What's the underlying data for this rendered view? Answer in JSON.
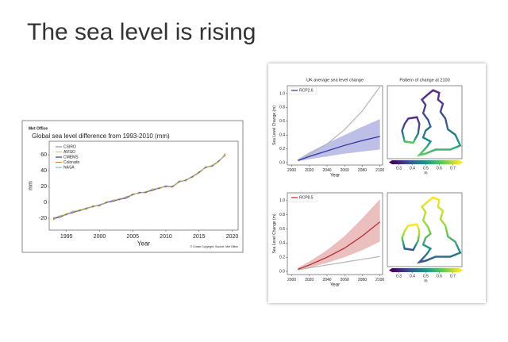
{
  "title": "The sea level is rising",
  "chart_data": [
    {
      "type": "line",
      "logo": "Met Office",
      "title": "Global sea level difference from 1993-2010 (mm)",
      "xlabel": "Year",
      "ylabel": "mm",
      "note": "© Crown Copyright. Source: Met Office",
      "xlim": [
        1992.4,
        2020.9
      ],
      "ylim": [
        -35,
        77
      ],
      "xticks": [
        1995,
        2000,
        2005,
        2010,
        2015,
        2020
      ],
      "yticks": [
        -20,
        0,
        20,
        40,
        60
      ],
      "legend": "upper left",
      "x": [
        1993,
        1994,
        1995,
        1996,
        1997,
        1998,
        1999,
        2000,
        2001,
        2002,
        2003,
        2004,
        2005,
        2006,
        2007,
        2008,
        2009,
        2010,
        2011,
        2012,
        2013,
        2014,
        2015,
        2016,
        2017,
        2018,
        2019
      ],
      "series": [
        {
          "name": "CSIRO",
          "color": "#9c8fb8",
          "values": [
            -21,
            -17,
            -16,
            -11,
            -11,
            -7,
            -6,
            -3,
            -1,
            3,
            3,
            7,
            9,
            13,
            12,
            17,
            17,
            21,
            19,
            27,
            27,
            33,
            37,
            45,
            45,
            53,
            59
          ]
        },
        {
          "name": "AVISO",
          "color": "#e2cf4a",
          "values": [
            -19,
            -18,
            -14,
            -12,
            -9,
            -9,
            -4,
            -5,
            1,
            2,
            5,
            6,
            11,
            11,
            14,
            16,
            19,
            19,
            21,
            25,
            29,
            31,
            39,
            43,
            47,
            51,
            61
          ]
        },
        {
          "name": "CMEMS",
          "color": "#2e3f7c",
          "values": [
            -20,
            -19,
            -15,
            -13,
            -10,
            -8,
            -5,
            -4,
            0,
            1,
            4,
            5,
            10,
            12,
            13,
            15,
            18,
            20,
            20,
            26,
            28,
            32,
            38,
            44,
            46,
            52,
            60
          ]
        },
        {
          "name": "Colorado",
          "color": "#c98a3c",
          "values": [
            -22,
            -18,
            -15,
            -12,
            -10,
            -7,
            -5,
            -3,
            0,
            2,
            3,
            6,
            10,
            12,
            12,
            16,
            18,
            20,
            19,
            26,
            28,
            32,
            37,
            44,
            46,
            51,
            62
          ]
        },
        {
          "name": "NASA",
          "color": "#7db7d6",
          "values": [
            -20,
            -17,
            -15,
            -12,
            -11,
            -8,
            -5,
            -4,
            -1,
            2,
            4,
            7,
            10,
            12,
            13,
            16,
            18,
            21,
            20,
            25,
            28,
            33,
            38,
            44,
            47,
            52,
            60
          ]
        }
      ]
    },
    {
      "type": "line",
      "title": "UK average sea level change",
      "xlabel": "Year",
      "ylabel": "Sea Level Change (m)",
      "xlim": [
        1995,
        2103
      ],
      "ylim": [
        -0.035,
        1.115
      ],
      "xticks": [
        2000,
        2020,
        2040,
        2060,
        2080,
        2100
      ],
      "yticks": [
        {
          "value": 0,
          "label": "0.0"
        },
        0.2,
        0.4,
        0.6,
        0.8,
        {
          "value": 1,
          "label": "1.0"
        }
      ],
      "legend": "upper left",
      "x": [
        2007,
        2020,
        2040,
        2060,
        2080,
        2100
      ],
      "range": {
        "color": "#7b7fd0",
        "lower": [
          0.02,
          0.05,
          0.09,
          0.13,
          0.16,
          0.19
        ],
        "upper": [
          0.05,
          0.15,
          0.28,
          0.4,
          0.52,
          0.63
        ]
      },
      "series": [
        {
          "name": "RCP2.6",
          "color": "#2b2f9e",
          "values": [
            0.03,
            0.09,
            0.17,
            0.25,
            0.32,
            0.38
          ]
        },
        {
          "color": "#b5b5b5",
          "values": [
            0.04,
            0.12,
            0.27,
            0.48,
            0.75,
            1.1
          ]
        }
      ]
    },
    {
      "type": "map",
      "title": "Pattern of change at 2100",
      "clim": [
        0.25,
        0.75
      ],
      "cticks": [
        0.3,
        0.4,
        0.5,
        0.6,
        0.7
      ],
      "clabel": "m"
    },
    {
      "type": "line",
      "xlabel": "Year",
      "ylabel": "Sea Level Change (m)",
      "xlim": [
        1995,
        2103
      ],
      "ylim": [
        -0.045,
        1.11
      ],
      "xticks": [
        2000,
        2020,
        2040,
        2060,
        2080,
        2100
      ],
      "yticks": [
        {
          "value": 0,
          "label": "0.0"
        },
        0.2,
        0.4,
        0.6,
        0.8,
        {
          "value": 1,
          "label": "1.0"
        }
      ],
      "legend": "upper left",
      "x": [
        2007,
        2020,
        2040,
        2060,
        2080,
        2100
      ],
      "range": {
        "color": "#d98080",
        "lower": [
          0.02,
          0.05,
          0.12,
          0.2,
          0.3,
          0.42
        ],
        "upper": [
          0.05,
          0.14,
          0.3,
          0.5,
          0.75,
          1.02
        ]
      },
      "series": [
        {
          "name": "RCP8.5",
          "color": "#b3262a",
          "values": [
            0.03,
            0.09,
            0.2,
            0.33,
            0.5,
            0.7
          ]
        },
        {
          "color": "#b5b5b5",
          "values": [
            0.02,
            0.05,
            0.09,
            0.13,
            0.17,
            0.21
          ]
        }
      ]
    },
    {
      "type": "map",
      "clim": [
        0.25,
        0.75
      ],
      "cticks": [
        0.3,
        0.4,
        0.5,
        0.6,
        0.7
      ],
      "clabel": "m"
    }
  ]
}
